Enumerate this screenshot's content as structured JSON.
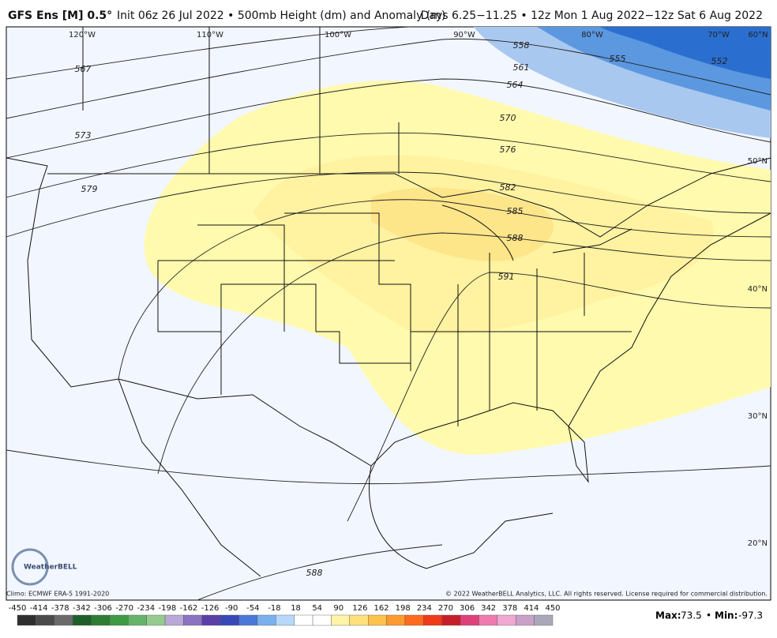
{
  "header": {
    "model": "GFS Ens [M] 0.5°",
    "description": "Init 06z 26 Jul 2022 • 500mb Height (dm) and Anomaly (m)",
    "valid": "Days 6.25−11.25 • 12z Mon 1 Aug 2022−12z Sat 6 Aug 2022"
  },
  "map": {
    "longitude_labels": [
      "120°W",
      "110°W",
      "100°W",
      "90°W",
      "80°W",
      "70°W",
      "60°N"
    ],
    "latitude_labels": [
      "50°N",
      "40°N",
      "30°N",
      "20°N"
    ],
    "contour_labels": [
      "567",
      "573",
      "579",
      "558",
      "561",
      "564",
      "570",
      "576",
      "582",
      "585",
      "588",
      "591",
      "555",
      "552",
      "588"
    ]
  },
  "logo": {
    "text": "WeatherBELL"
  },
  "footer": {
    "climo": "Climo: ECMWF ERA-5 1991-2020",
    "copyright": "© 2022 WeatherBELL Analytics, LLC. All rights reserved. License required for commercial distribution."
  },
  "colorbar": {
    "ticks": [
      -450,
      -414,
      -378,
      -342,
      -306,
      -270,
      -234,
      -198,
      -162,
      -126,
      -90,
      -54,
      -18,
      18,
      54,
      90,
      126,
      162,
      198,
      234,
      270,
      306,
      342,
      378,
      414,
      450
    ]
  },
  "stats": {
    "max_label": "Max:",
    "max": 73.5,
    "separator": "•",
    "min_label": "Min:",
    "min": -97.3
  }
}
